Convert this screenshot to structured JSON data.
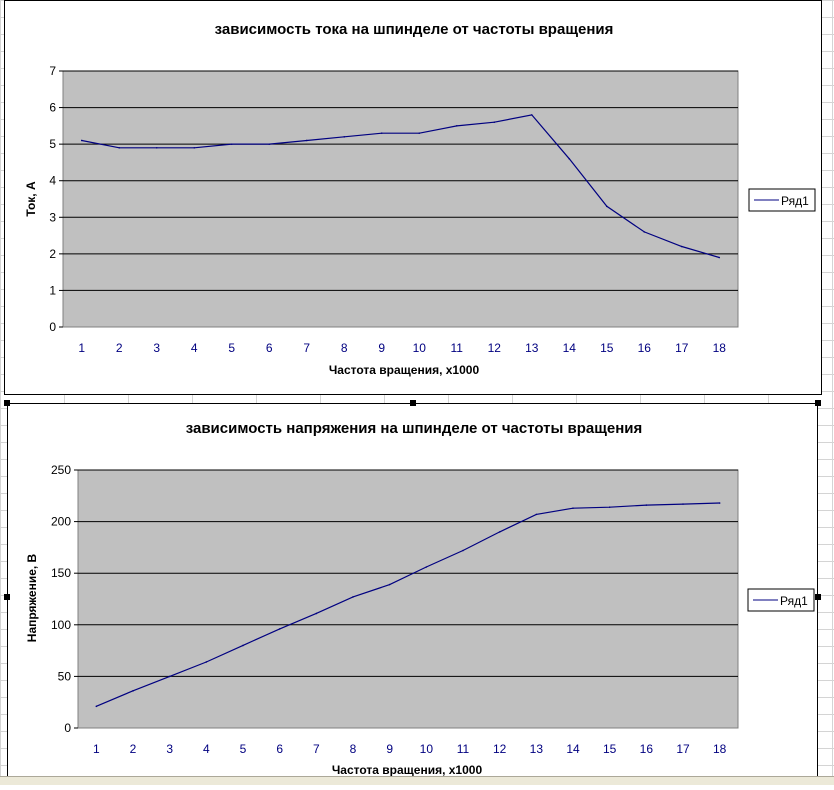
{
  "colors": {
    "plot_background": "#c0c0c0",
    "series_line": "#000080",
    "gridline": "#000000",
    "tick_text": "#000000",
    "category_text": "#000080"
  },
  "chart_data": [
    {
      "type": "line",
      "title": "зависимость тока на шпинделе от частоты вращения",
      "xlabel": "Частота вращения, x1000",
      "ylabel": "Ток, А",
      "categories": [
        "1",
        "2",
        "3",
        "4",
        "5",
        "6",
        "7",
        "8",
        "9",
        "10",
        "11",
        "12",
        "13",
        "14",
        "15",
        "16",
        "17",
        "18"
      ],
      "series": [
        {
          "name": "Ряд1",
          "values": [
            5.1,
            4.9,
            4.9,
            4.9,
            5.0,
            5.0,
            5.1,
            5.2,
            5.3,
            5.3,
            5.5,
            5.6,
            5.8,
            4.6,
            3.3,
            2.6,
            2.2,
            1.9
          ]
        }
      ],
      "ylim": [
        0,
        7
      ],
      "yticks": [
        "0",
        "1",
        "2",
        "3",
        "4",
        "5",
        "6",
        "7"
      ],
      "grid": true,
      "legend": "right"
    },
    {
      "type": "line",
      "title": "зависимость напряжения на шпинделе от частоты вращения",
      "xlabel": "Частота вращения, x1000",
      "ylabel": "Напряжение, В",
      "categories": [
        "1",
        "2",
        "3",
        "4",
        "5",
        "6",
        "7",
        "8",
        "9",
        "10",
        "11",
        "12",
        "13",
        "14",
        "15",
        "16",
        "17",
        "18"
      ],
      "series": [
        {
          "name": "Ряд1",
          "values": [
            21,
            36,
            50,
            64,
            80,
            96,
            111,
            127,
            139,
            156,
            172,
            190,
            207,
            213,
            214,
            216,
            217,
            218
          ]
        }
      ],
      "ylim": [
        0,
        250
      ],
      "yticks": [
        "0",
        "50",
        "100",
        "150",
        "200",
        "250"
      ],
      "grid": true,
      "legend": "right"
    }
  ]
}
